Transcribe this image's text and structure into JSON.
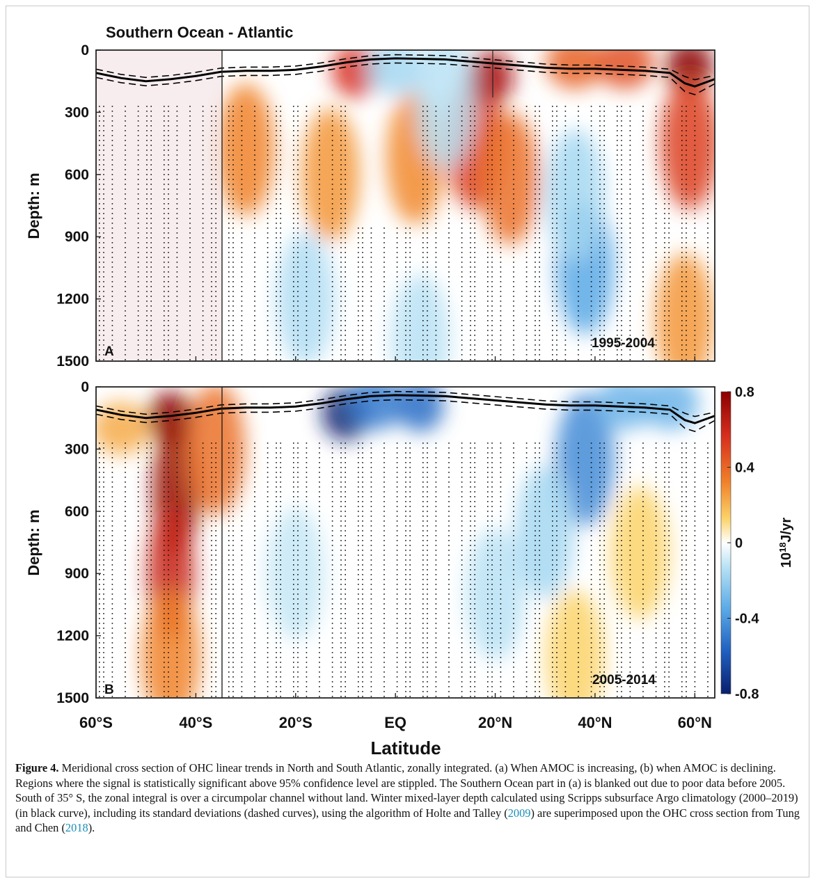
{
  "figure": {
    "title": "Southern Ocean - Atlantic",
    "panels": [
      {
        "letter": "A",
        "period": "1995-2004"
      },
      {
        "letter": "B",
        "period": "2005-2014"
      }
    ],
    "ylabel": "Depth: m",
    "xlabel": "Latitude",
    "colorbar": {
      "label": "10^18 J/yr",
      "label_base": "10",
      "label_exp": "18",
      "label_unit": "J/yr",
      "ticks": [
        "0.8",
        "0.4",
        "0",
        "-0.4",
        "-0.8"
      ]
    },
    "colors": {
      "warm_max": "#8b0000",
      "warm": "#e8501e",
      "warm_mid": "#f5a623",
      "neutral": "#ffffff",
      "cool": "#9fd6ee",
      "cool_mid": "#3a8fd8",
      "cool_max": "#0a1f6e",
      "mixed_layer": "#000000"
    }
  },
  "chart_data": [
    {
      "type": "heatmap",
      "panel": "A",
      "title": "Southern Ocean - Atlantic",
      "annotation": "1995-2004",
      "ylabel": "Depth: m",
      "xlabel": "",
      "x_ticks": [
        "60°S",
        "40°S",
        "20°S",
        "EQ",
        "20°N",
        "40°N",
        "60°N"
      ],
      "x_tick_values": [
        -60,
        -40,
        -20,
        0,
        20,
        40,
        60
      ],
      "xlim": [
        -60,
        64
      ],
      "y_ticks": [
        "0",
        "300",
        "600",
        "900",
        "1200",
        "1500"
      ],
      "y_tick_values": [
        0,
        300,
        600,
        900,
        1200,
        1500
      ],
      "ylim": [
        0,
        1500
      ],
      "y_inverted": true,
      "blanked_region": [
        -60,
        -35
      ],
      "stippled": true,
      "blobs": [
        {
          "lat": -30,
          "depth": 480,
          "value": 0.3
        },
        {
          "lat": -13,
          "depth": 600,
          "value": 0.25
        },
        {
          "lat": -8,
          "depth": 100,
          "value": 0.55
        },
        {
          "lat": 4,
          "depth": 520,
          "value": 0.28
        },
        {
          "lat": 16,
          "depth": 450,
          "value": 0.5
        },
        {
          "lat": 19,
          "depth": 130,
          "value": 0.7
        },
        {
          "lat": 23,
          "depth": 620,
          "value": 0.35
        },
        {
          "lat": 36,
          "depth": 60,
          "value": 0.4
        },
        {
          "lat": 46,
          "depth": 60,
          "value": 0.45
        },
        {
          "lat": 59,
          "depth": 80,
          "value": 0.8
        },
        {
          "lat": 59,
          "depth": 450,
          "value": 0.5
        },
        {
          "lat": 58,
          "depth": 1300,
          "value": 0.25
        },
        {
          "lat": 38,
          "depth": 1050,
          "value": -0.35
        },
        {
          "lat": 36,
          "depth": 700,
          "value": -0.15
        },
        {
          "lat": -18,
          "depth": 1200,
          "value": -0.12
        },
        {
          "lat": 5,
          "depth": 1400,
          "value": -0.1
        },
        {
          "lat": 0,
          "depth": 90,
          "value": -0.15
        },
        {
          "lat": 10,
          "depth": 250,
          "value": -0.1
        }
      ],
      "mixed_layer_depth": {
        "lat": [
          -60,
          -55,
          -50,
          -45,
          -40,
          -35,
          -30,
          -25,
          -20,
          -15,
          -10,
          -5,
          0,
          5,
          10,
          15,
          20,
          25,
          30,
          35,
          40,
          45,
          50,
          55,
          58,
          60,
          64
        ],
        "depth": [
          110,
          135,
          150,
          140,
          125,
          105,
          100,
          100,
          95,
          80,
          60,
          45,
          40,
          42,
          45,
          55,
          65,
          75,
          85,
          90,
          90,
          95,
          100,
          110,
          160,
          175,
          140
        ]
      }
    },
    {
      "type": "heatmap",
      "panel": "B",
      "annotation": "2005-2014",
      "ylabel": "Depth: m",
      "xlabel": "Latitude",
      "x_ticks": [
        "60°S",
        "40°S",
        "20°S",
        "EQ",
        "20°N",
        "40°N",
        "60°N"
      ],
      "x_tick_values": [
        -60,
        -40,
        -20,
        0,
        20,
        40,
        60
      ],
      "xlim": [
        -60,
        64
      ],
      "y_ticks": [
        "0",
        "300",
        "600",
        "900",
        "1200",
        "1500"
      ],
      "y_tick_values": [
        0,
        300,
        600,
        900,
        1200,
        1500
      ],
      "ylim": [
        0,
        1500
      ],
      "y_inverted": true,
      "colorbar_range": [
        -0.8,
        0.8
      ],
      "stippled": true,
      "blobs": [
        {
          "lat": -45,
          "depth": 150,
          "value": 0.8
        },
        {
          "lat": -44,
          "depth": 500,
          "value": 0.75
        },
        {
          "lat": -45,
          "depth": 900,
          "value": 0.6
        },
        {
          "lat": -45,
          "depth": 1300,
          "value": 0.3
        },
        {
          "lat": -36,
          "depth": 300,
          "value": 0.35
        },
        {
          "lat": -55,
          "depth": 200,
          "value": 0.2
        },
        {
          "lat": -10,
          "depth": 130,
          "value": -0.8
        },
        {
          "lat": -4,
          "depth": 80,
          "value": -0.5
        },
        {
          "lat": 5,
          "depth": 90,
          "value": -0.55
        },
        {
          "lat": 38,
          "depth": 350,
          "value": -0.45
        },
        {
          "lat": 46,
          "depth": 80,
          "value": -0.3
        },
        {
          "lat": 55,
          "depth": 80,
          "value": -0.3
        },
        {
          "lat": 30,
          "depth": 700,
          "value": -0.15
        },
        {
          "lat": 20,
          "depth": 1000,
          "value": -0.1
        },
        {
          "lat": -20,
          "depth": 900,
          "value": -0.08
        },
        {
          "lat": 49,
          "depth": 800,
          "value": 0.1
        },
        {
          "lat": 36,
          "depth": 1300,
          "value": 0.1
        }
      ],
      "mixed_layer_depth": {
        "lat": [
          -60,
          -55,
          -50,
          -45,
          -40,
          -35,
          -30,
          -25,
          -20,
          -15,
          -10,
          -5,
          0,
          5,
          10,
          15,
          20,
          25,
          30,
          35,
          40,
          45,
          50,
          55,
          58,
          60,
          64
        ],
        "depth": [
          110,
          135,
          150,
          140,
          125,
          105,
          100,
          100,
          95,
          80,
          60,
          45,
          40,
          42,
          45,
          55,
          65,
          75,
          85,
          90,
          90,
          95,
          100,
          110,
          160,
          175,
          140
        ]
      }
    }
  ],
  "caption": {
    "label": "Figure 4.",
    "text1": " Meridional cross section of OHC linear trends in North and South Atlantic, zonally integrated. (a) When AMOC is increasing, (b) when AMOC is declining. Regions where the signal is statistically significant above 95% confidence level are stippled. The Southern Ocean part in (a) is blanked out due to poor data before 2005. South of 35° S, the zonal integral is over a circumpolar channel without land. Winter mixed-layer depth calculated using Scripps subsurface Argo climatology (2000–2019) (in black curve), including its standard deviations (dashed curves), using the algorithm of Holte and Talley (",
    "ref1": "2009",
    "text2": ") are superimposed upon the OHC cross section from Tung and Chen (",
    "ref2": "2018",
    "text3": ")."
  }
}
